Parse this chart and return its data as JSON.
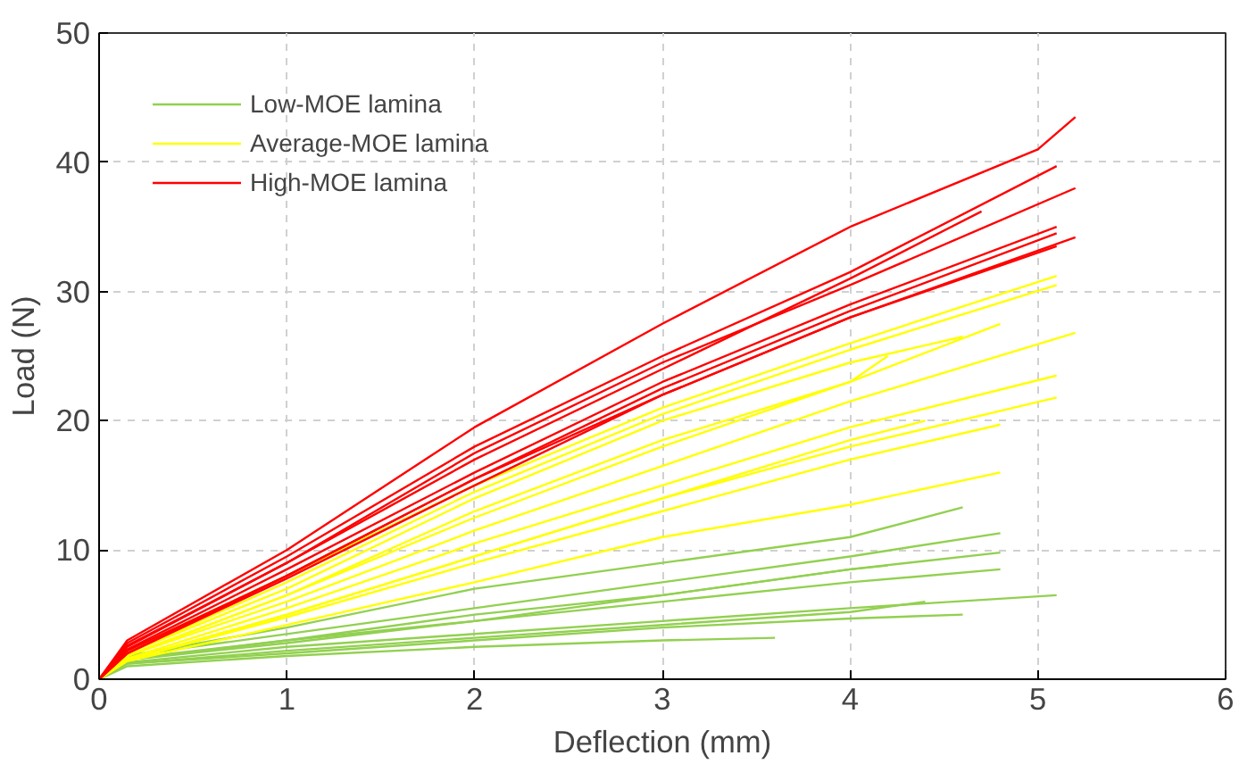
{
  "chart_data": {
    "type": "line",
    "xlabel": "Deflection (mm)",
    "ylabel": "Load (N)",
    "xlim": [
      0,
      6
    ],
    "ylim": [
      0,
      50
    ],
    "xticks": [
      0,
      1,
      2,
      3,
      4,
      5,
      6
    ],
    "yticks": [
      0,
      10,
      20,
      30,
      40,
      50
    ],
    "grid": true,
    "legend": "top left",
    "line_style": "solid",
    "marker": "none",
    "series": [
      {
        "name": "Low-MOE lamina",
        "color": "#92d050",
        "x": [
          0,
          0.15,
          1,
          2,
          3,
          4,
          4.6
        ],
        "values": [
          0,
          1.8,
          4,
          7,
          9,
          11,
          13.3
        ]
      },
      {
        "color": "#92d050",
        "x": [
          0,
          0.15,
          1,
          2,
          3,
          4,
          4.8
        ],
        "values": [
          0,
          1.8,
          3.5,
          5.5,
          7.5,
          9.5,
          11.3
        ]
      },
      {
        "color": "#92d050",
        "x": [
          0,
          0.15,
          1,
          2,
          3,
          4,
          4.8
        ],
        "values": [
          0,
          1.6,
          3,
          5,
          6.5,
          8.5,
          9.8
        ]
      },
      {
        "color": "#92d050",
        "x": [
          0,
          0.15,
          1,
          2,
          3,
          4,
          4.8
        ],
        "values": [
          0,
          1.5,
          2.8,
          4.5,
          6,
          7.5,
          8.5
        ]
      },
      {
        "color": "#92d050",
        "x": [
          0,
          0.15,
          1,
          2,
          3,
          4,
          4.2
        ],
        "values": [
          0,
          1.5,
          3,
          4.5,
          6.5,
          8.5,
          8.8
        ]
      },
      {
        "color": "#92d050",
        "x": [
          0,
          0.15,
          1,
          2,
          3,
          4,
          5.1
        ],
        "values": [
          0,
          1.3,
          2.5,
          3.5,
          4.5,
          5.5,
          6.5
        ]
      },
      {
        "color": "#92d050",
        "x": [
          0,
          0.15,
          1,
          2,
          3,
          4,
          4.4
        ],
        "values": [
          0,
          1.2,
          2.2,
          3.2,
          4.2,
          5.2,
          6
        ]
      },
      {
        "color": "#92d050",
        "x": [
          0,
          0.15,
          1,
          2,
          3,
          4,
          4.6
        ],
        "values": [
          0,
          1.2,
          2,
          3,
          4,
          4.7,
          5
        ]
      },
      {
        "color": "#92d050",
        "x": [
          0,
          0.15,
          1,
          2,
          3,
          3.6
        ],
        "values": [
          0,
          1,
          1.8,
          2.5,
          3,
          3.2
        ]
      },
      {
        "name": "Average-MOE lamina",
        "color": "#ffff00",
        "x": [
          0,
          0.15,
          1,
          2,
          3,
          4,
          5.1
        ],
        "values": [
          0,
          2.2,
          8,
          15,
          21,
          26,
          31.2
        ]
      },
      {
        "color": "#ffff00",
        "x": [
          0,
          0.15,
          1,
          2,
          3,
          4,
          5.1
        ],
        "values": [
          0,
          2,
          7.5,
          14.5,
          20.5,
          25.5,
          30.5
        ]
      },
      {
        "color": "#ffff00",
        "x": [
          0,
          0.15,
          1,
          2,
          3,
          4,
          4.6
        ],
        "values": [
          0,
          2,
          7,
          14,
          20,
          24.5,
          26.5
        ]
      },
      {
        "color": "#ffff00",
        "x": [
          0,
          0.15,
          1,
          2,
          3,
          4,
          4.8
        ],
        "values": [
          0,
          1.8,
          6.5,
          12.5,
          18,
          23,
          27.5
        ]
      },
      {
        "color": "#ffff00",
        "x": [
          0,
          0.15,
          1,
          2,
          3,
          4,
          5.2
        ],
        "values": [
          0,
          1.8,
          6,
          11.5,
          16.5,
          21.5,
          26.8
        ]
      },
      {
        "color": "#ffff00",
        "x": [
          0,
          0.15,
          1,
          2,
          3,
          4,
          4.2
        ],
        "values": [
          0,
          1.8,
          6.5,
          13,
          18.5,
          23,
          25
        ]
      },
      {
        "color": "#ffff00",
        "x": [
          0,
          0.15,
          1,
          2,
          3,
          4,
          5.1
        ],
        "values": [
          0,
          1.6,
          5.5,
          10.5,
          15,
          19.5,
          23.5
        ]
      },
      {
        "color": "#ffff00",
        "x": [
          0,
          0.15,
          1,
          2,
          3,
          4,
          5.1
        ],
        "values": [
          0,
          1.5,
          5,
          9.5,
          14,
          18,
          21.8
        ]
      },
      {
        "color": "#ffff00",
        "x": [
          0,
          0.15,
          1,
          2,
          3,
          4,
          4.8
        ],
        "values": [
          0,
          1.5,
          4.8,
          9,
          13,
          17,
          19.7
        ]
      },
      {
        "color": "#ffff00",
        "x": [
          0,
          0.15,
          1,
          2,
          3,
          4,
          4.8
        ],
        "values": [
          0,
          1.4,
          4.2,
          7.5,
          11,
          13.5,
          16
        ]
      },
      {
        "color": "#ffff00",
        "x": [
          0,
          0.15,
          1,
          2,
          3,
          4,
          4.4
        ],
        "values": [
          0,
          1.5,
          5,
          9.5,
          14,
          18.5,
          20
        ]
      },
      {
        "name": "High-MOE lamina",
        "color": "#ff0000",
        "x": [
          0,
          0.15,
          1,
          2,
          3,
          4,
          5,
          5.2
        ],
        "values": [
          0,
          3,
          10,
          19.5,
          27.5,
          35,
          41,
          43.5
        ]
      },
      {
        "color": "#ff0000",
        "x": [
          0,
          0.15,
          1,
          2,
          3,
          4,
          5.1
        ],
        "values": [
          0,
          2.8,
          9.5,
          18,
          25,
          31.5,
          39.7
        ]
      },
      {
        "color": "#ff0000",
        "x": [
          0,
          0.15,
          1,
          2,
          3,
          4,
          5.2
        ],
        "values": [
          0,
          2.6,
          9,
          17.5,
          24.5,
          30.5,
          38
        ]
      },
      {
        "color": "#ff0000",
        "x": [
          0,
          0.15,
          1,
          2,
          3,
          4,
          4.7
        ],
        "values": [
          0,
          2.5,
          9,
          17,
          24,
          31,
          36.2
        ]
      },
      {
        "color": "#ff0000",
        "x": [
          0,
          0.15,
          1,
          2,
          3,
          4,
          5.1
        ],
        "values": [
          0,
          2.3,
          8.5,
          16,
          23,
          29,
          35
        ]
      },
      {
        "color": "#ff0000",
        "x": [
          0,
          0.15,
          1,
          2,
          3,
          4,
          5.1
        ],
        "values": [
          0,
          2.2,
          8,
          15.5,
          22.5,
          28.5,
          34.5
        ]
      },
      {
        "color": "#ff0000",
        "x": [
          0,
          0.15,
          1,
          2,
          3,
          4,
          5.2
        ],
        "values": [
          0,
          2,
          8,
          15.5,
          22,
          28,
          34.2
        ]
      },
      {
        "color": "#ff0000",
        "x": [
          0,
          0.15,
          1,
          2,
          3,
          4,
          5.1
        ],
        "values": [
          0,
          2,
          7.8,
          15,
          22,
          28,
          33.5
        ]
      }
    ]
  }
}
